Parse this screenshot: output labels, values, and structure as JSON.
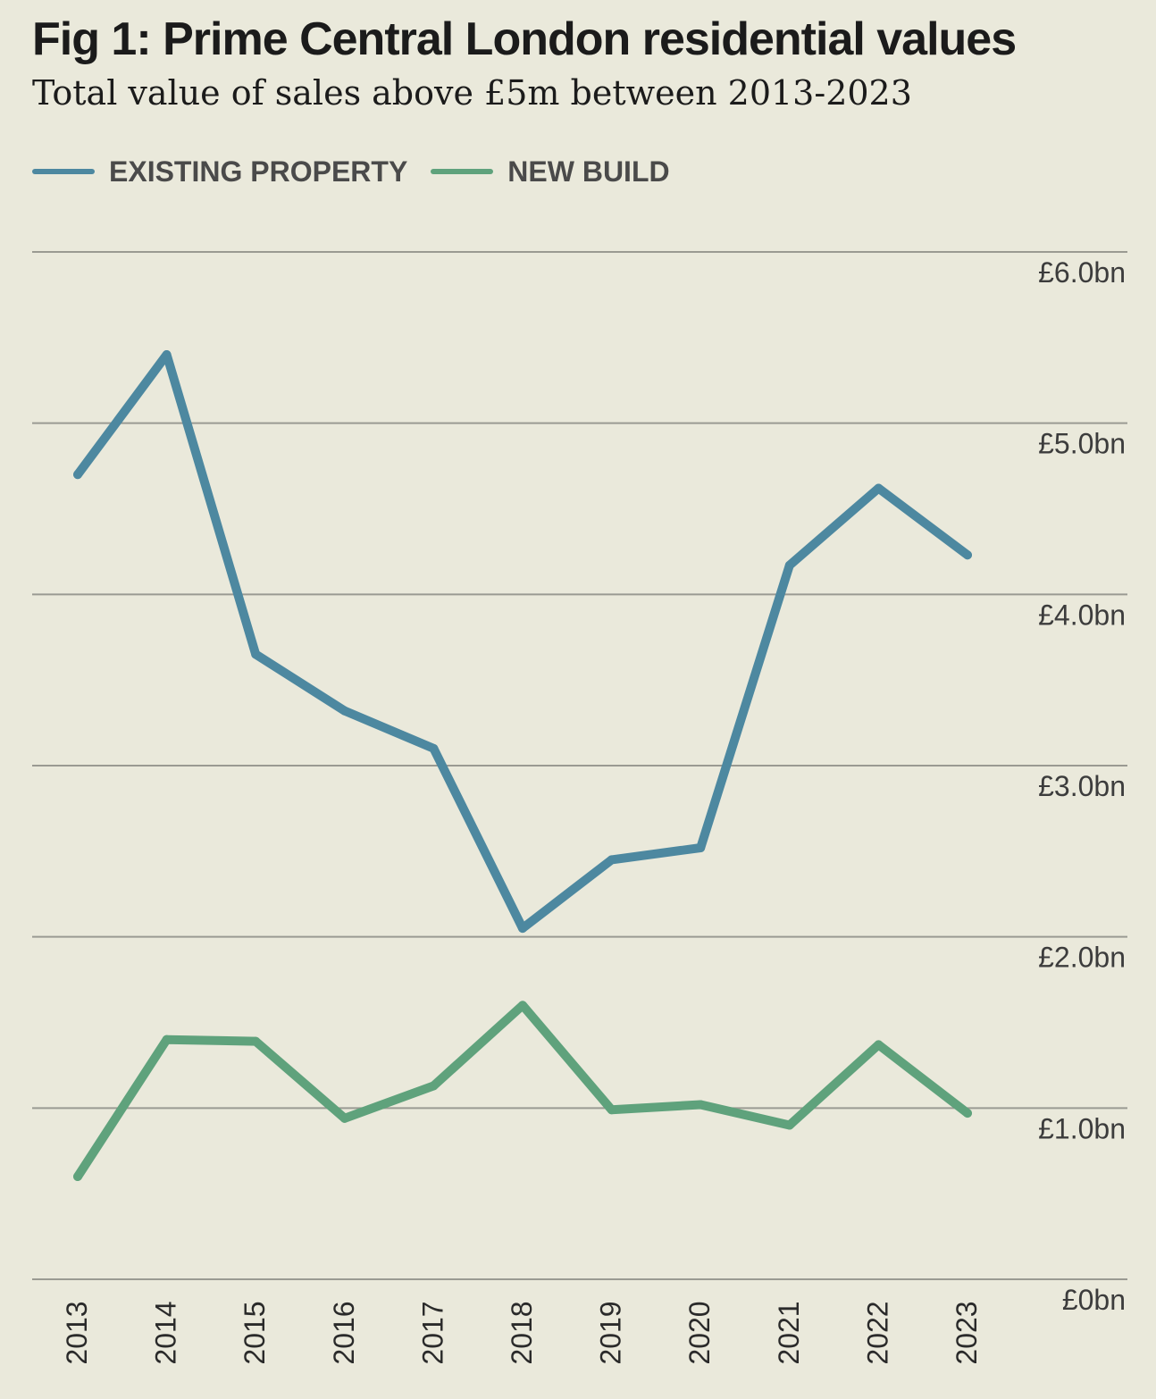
{
  "chart_data": {
    "type": "line",
    "title": "Fig 1: Prime Central London residential values",
    "subtitle": "Total value of sales above £5m between 2013-2023",
    "x": [
      "2013",
      "2014",
      "2015",
      "2016",
      "2017",
      "2018",
      "2019",
      "2020",
      "2021",
      "2022",
      "2023"
    ],
    "series": [
      {
        "name": "EXISTING PROPERTY",
        "color": "#4d88a0",
        "values": [
          4.7,
          5.4,
          3.65,
          3.32,
          3.1,
          2.05,
          2.45,
          2.52,
          4.17,
          4.62,
          4.23
        ]
      },
      {
        "name": "NEW BUILD",
        "color": "#5fa27c",
        "values": [
          0.6,
          1.4,
          1.39,
          0.94,
          1.13,
          1.6,
          0.99,
          1.02,
          0.9,
          1.37,
          0.97
        ]
      }
    ],
    "ylim": [
      0,
      6
    ],
    "yticks": [
      0,
      1,
      2,
      3,
      4,
      5,
      6
    ],
    "ytick_labels": [
      "£0bn",
      "£1.0bn",
      "£2.0bn",
      "£3.0bn",
      "£4.0bn",
      "£5.0bn",
      "£6.0bn"
    ],
    "xlabel": "",
    "ylabel": "",
    "grid": "horizontal",
    "legend_position": "top-left",
    "yaxis_side": "right",
    "gridline_color": "#9a9a92",
    "background": "#eae9db"
  }
}
